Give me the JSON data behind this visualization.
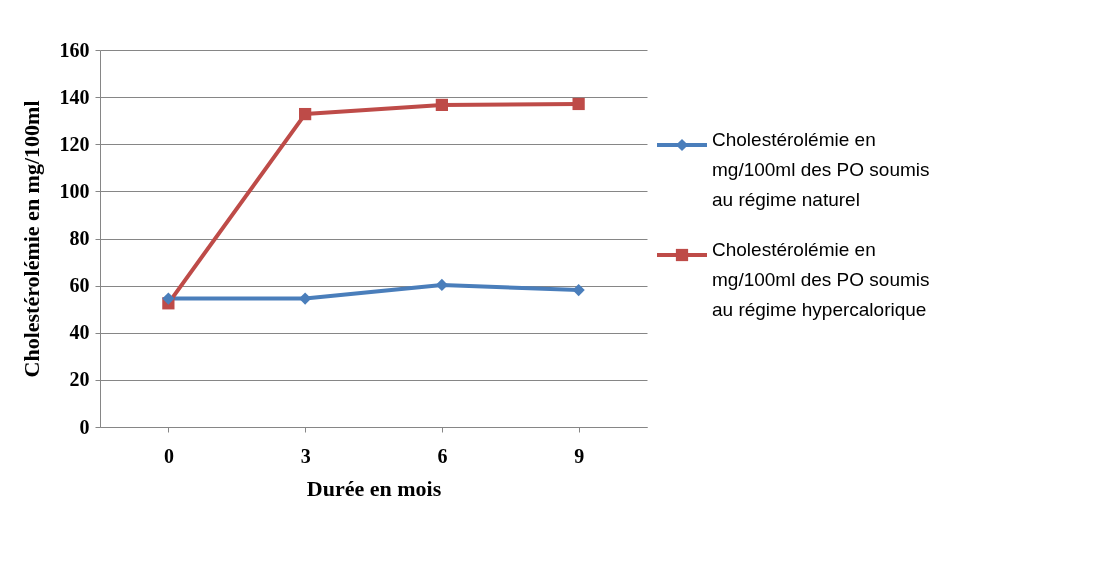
{
  "chart_data": {
    "type": "line",
    "xlabel": "Durée en mois",
    "ylabel": "Cholestérolémie en mg/100ml",
    "categories": [
      "0",
      "3",
      "6",
      "9"
    ],
    "series": [
      {
        "name": "Cholestérolémie en mg/100ml des PO soumis au régime naturel",
        "color": "#4a7ebb",
        "marker": "diamond",
        "values": [
          54.5,
          54.5,
          60.3,
          58.1
        ]
      },
      {
        "name": "Cholestérolémie en mg/100ml des PO soumis au régime hypercalorique",
        "color": "#be4b48",
        "marker": "square",
        "values": [
          52.5,
          132.8,
          136.7,
          137.1
        ]
      }
    ],
    "ylim": [
      0,
      160
    ],
    "yticks": [
      0,
      20,
      40,
      60,
      80,
      100,
      120,
      140,
      160
    ],
    "grid": "y",
    "legend": "right",
    "line_style": "solid"
  }
}
